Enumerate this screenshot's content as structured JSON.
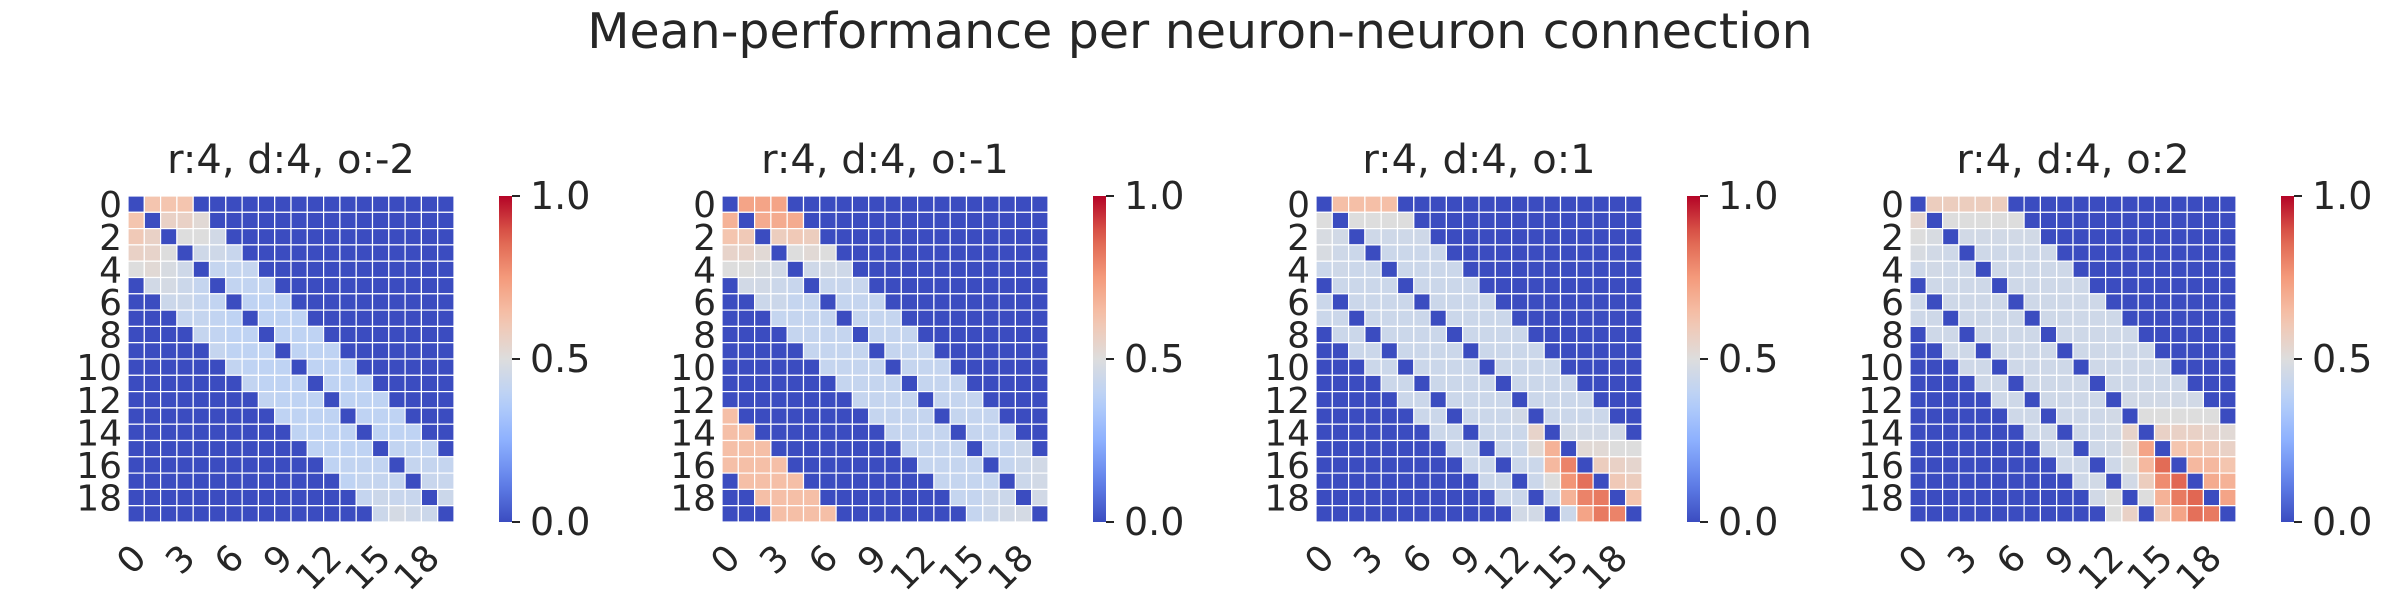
{
  "suptitle": "Mean-performance per neuron-neuron connection",
  "chart_data": [
    {
      "type": "heatmap",
      "title": "r:4, d:4, o:-2",
      "size": 20,
      "colormap": "coolwarm",
      "vmin": 0.0,
      "vmax": 1.0,
      "colorbar_ticks": [
        "0.0",
        "0.5",
        "1.0"
      ],
      "y_tick_labels": [
        "0",
        "2",
        "4",
        "6",
        "8",
        "10",
        "12",
        "14",
        "16",
        "18"
      ],
      "x_tick_labels": [
        "0",
        "3",
        "6",
        "9",
        "12",
        "15",
        "18"
      ],
      "zero_value": 0.0,
      "diagonal_value": 0.0,
      "bands": [
        {
          "offset": -5,
          "values": [
            0,
            0,
            0,
            0,
            0,
            0,
            0,
            0,
            0,
            0,
            0,
            0,
            0,
            0,
            0
          ]
        },
        {
          "offset": -4,
          "values": [
            0.5,
            0.46,
            0.44,
            0.42,
            0.42,
            0.42,
            0.41,
            0.41,
            0.41,
            0.4,
            0.4,
            0.4,
            0.4,
            0.4,
            0.42,
            0.44
          ]
        },
        {
          "offset": -3,
          "values": [
            0.56,
            0.52,
            0.47,
            0.44,
            0.42,
            0.41,
            0.4,
            0.4,
            0.4,
            0.4,
            0.4,
            0.4,
            0.4,
            0.41,
            0.42,
            0.44,
            0.47
          ]
        },
        {
          "offset": -2,
          "values": [
            0.6,
            0.55,
            0.48,
            0.44,
            0.42,
            0.41,
            0.4,
            0.4,
            0.4,
            0.4,
            0.4,
            0.4,
            0.4,
            0.4,
            0.41,
            0.42,
            0.43,
            0.45
          ]
        },
        {
          "offset": -1,
          "values": [
            0.62,
            0.56,
            0.5,
            0.45,
            0.42,
            0.41,
            0.4,
            0.4,
            0.4,
            0.4,
            0.4,
            0.4,
            0.4,
            0.4,
            0.4,
            0.41,
            0.42,
            0.43,
            0.44
          ]
        },
        {
          "offset": 1,
          "values": [
            0.62,
            0.56,
            0.5,
            0.45,
            0.42,
            0.41,
            0.4,
            0.4,
            0.4,
            0.4,
            0.4,
            0.4,
            0.4,
            0.4,
            0.4,
            0.41,
            0.42,
            0.43,
            0.44
          ]
        },
        {
          "offset": 2,
          "values": [
            0.62,
            0.56,
            0.5,
            0.45,
            0.42,
            0.41,
            0.4,
            0.4,
            0.4,
            0.4,
            0.4,
            0.4,
            0.4,
            0.4,
            0.4,
            0.41,
            0.42,
            0.43
          ]
        },
        {
          "offset": 3,
          "values": [
            0.62,
            0.52,
            0.46,
            0.43,
            0.42,
            0.41,
            0.4,
            0.4,
            0.4,
            0.4,
            0.4,
            0.4,
            0.4,
            0.4,
            0.4,
            0.41,
            0.42
          ]
        },
        {
          "offset": 4,
          "values": [
            0,
            0,
            0,
            0,
            0,
            0,
            0,
            0,
            0,
            0,
            0,
            0,
            0,
            0,
            0,
            0
          ]
        }
      ]
    },
    {
      "type": "heatmap",
      "title": "r:4, d:4, o:-1",
      "size": 20,
      "colormap": "coolwarm",
      "vmin": 0.0,
      "vmax": 1.0,
      "colorbar_ticks": [
        "0.0",
        "0.5",
        "1.0"
      ],
      "y_tick_labels": [
        "0",
        "2",
        "4",
        "6",
        "8",
        "10",
        "12",
        "14",
        "16",
        "18"
      ],
      "x_tick_labels": [
        "0",
        "3",
        "6",
        "9",
        "12",
        "15",
        "18"
      ],
      "zero_value": 0.0,
      "diagonal_value": 0.0,
      "bands": [
        {
          "offset": -4,
          "values": [
            0.5,
            0.46,
            0.44,
            0.42,
            0.42,
            0.42,
            0.42,
            0.42,
            0.42,
            0.42,
            0.42,
            0.42,
            0.42,
            0.42,
            0.42,
            0.42
          ]
        },
        {
          "offset": -3,
          "values": [
            0.55,
            0.5,
            0.46,
            0.44,
            0.42,
            0.42,
            0.42,
            0.42,
            0.42,
            0.42,
            0.42,
            0.42,
            0.42,
            0.42,
            0.42,
            0.42,
            0.44
          ]
        },
        {
          "offset": -2,
          "values": [
            0.62,
            0.55,
            0.48,
            0.44,
            0.42,
            0.42,
            0.42,
            0.42,
            0.42,
            0.42,
            0.42,
            0.42,
            0.42,
            0.42,
            0.42,
            0.42,
            0.44,
            0.46
          ]
        },
        {
          "offset": -1,
          "values": [
            0.68,
            0.6,
            0.52,
            0.46,
            0.43,
            0.42,
            0.42,
            0.42,
            0.42,
            0.42,
            0.42,
            0.42,
            0.42,
            0.42,
            0.42,
            0.42,
            0.42,
            0.44,
            0.47
          ]
        },
        {
          "offset": 1,
          "values": [
            0.72,
            0.7,
            0.58,
            0.5,
            0.45,
            0.43,
            0.42,
            0.42,
            0.42,
            0.42,
            0.42,
            0.42,
            0.42,
            0.42,
            0.42,
            0.42,
            0.42,
            0.44,
            0.46
          ]
        },
        {
          "offset": 2,
          "values": [
            0.72,
            0.7,
            0.6,
            0.52,
            0.46,
            0.43,
            0.42,
            0.42,
            0.42,
            0.42,
            0.42,
            0.42,
            0.42,
            0.42,
            0.42,
            0.42,
            0.44,
            0.46
          ]
        },
        {
          "offset": 3,
          "values": [
            0.72,
            0.7,
            0.58,
            0.5,
            0.45,
            0.43,
            0.42,
            0.42,
            0.42,
            0.42,
            0.42,
            0.42,
            0.42,
            0.42,
            0.42,
            0.44,
            0.46
          ]
        },
        {
          "offset": -16,
          "values": [
            0.64,
            0.64,
            0.64,
            0.64
          ]
        },
        {
          "offset": -15,
          "values": [
            0.64,
            0.64,
            0.64,
            0.64,
            0.64
          ]
        },
        {
          "offset": -14,
          "values": [
            0.64,
            0.64,
            0.64,
            0.64,
            0.64,
            0.64
          ]
        },
        {
          "offset": -13,
          "values": [
            0.64,
            0.64,
            0.64,
            0.64,
            0.64,
            0.64,
            0.64
          ]
        }
      ]
    },
    {
      "type": "heatmap",
      "title": "r:4, d:4, o:1",
      "size": 20,
      "colormap": "coolwarm",
      "vmin": 0.0,
      "vmax": 1.0,
      "colorbar_ticks": [
        "0.0",
        "0.5",
        "1.0"
      ],
      "y_tick_labels": [
        "0",
        "2",
        "4",
        "6",
        "8",
        "10",
        "12",
        "14",
        "16",
        "18"
      ],
      "x_tick_labels": [
        "0",
        "3",
        "6",
        "9",
        "12",
        "15",
        "18"
      ],
      "zero_value": 0.0,
      "diagonal_value": 0.0,
      "bands": [
        {
          "offset": -4,
          "values": [
            0.44,
            0.44,
            0.44,
            0.44,
            0.44,
            0.44,
            0.44,
            0.44,
            0.44,
            0.44,
            0.44,
            0.44,
            0.44,
            0.44,
            0.44,
            0.44
          ]
        },
        {
          "offset": -3,
          "values": [
            0.48,
            0.45,
            0.44,
            0.44,
            0.44,
            0.44,
            0.44,
            0.44,
            0.44,
            0.44,
            0.44,
            0.44,
            0.44,
            0.44,
            0.5,
            0.68,
            0.72
          ]
        },
        {
          "offset": -2,
          "values": [
            0.48,
            0.45,
            0.44,
            0.44,
            0.44,
            0.44,
            0.44,
            0.44,
            0.44,
            0.44,
            0.44,
            0.44,
            0.44,
            0.52,
            0.66,
            0.76,
            0.8,
            0.82
          ]
        },
        {
          "offset": -1,
          "values": [
            0.5,
            0.46,
            0.44,
            0.44,
            0.44,
            0.44,
            0.44,
            0.44,
            0.44,
            0.44,
            0.44,
            0.44,
            0.46,
            0.55,
            0.68,
            0.8,
            0.84,
            0.82,
            0.8
          ]
        },
        {
          "offset": 1,
          "values": [
            0.64,
            0.5,
            0.45,
            0.44,
            0.44,
            0.44,
            0.44,
            0.44,
            0.44,
            0.44,
            0.44,
            0.44,
            0.44,
            0.44,
            0.46,
            0.52,
            0.58,
            0.6,
            0.62
          ]
        },
        {
          "offset": 2,
          "values": [
            0.64,
            0.5,
            0.45,
            0.44,
            0.44,
            0.44,
            0.44,
            0.44,
            0.44,
            0.44,
            0.44,
            0.44,
            0.44,
            0.44,
            0.46,
            0.52,
            0.56,
            0.58
          ]
        },
        {
          "offset": 3,
          "values": [
            0.64,
            0.5,
            0.45,
            0.44,
            0.44,
            0.44,
            0.44,
            0.44,
            0.44,
            0.44,
            0.44,
            0.44,
            0.44,
            0.44,
            0.46,
            0.5,
            0.54
          ]
        },
        {
          "offset": 4,
          "values": [
            0.64,
            0.5,
            0.45,
            0.44,
            0.44,
            0.44,
            0.44,
            0.44,
            0.44,
            0.44,
            0.44,
            0.44,
            0.44,
            0.44,
            0.46,
            0.5
          ]
        },
        {
          "offset": -5,
          "values": [
            0,
            0,
            0,
            0,
            0,
            0,
            0,
            0,
            0,
            0,
            0,
            0,
            0,
            0,
            0
          ]
        },
        {
          "offset": -6,
          "values": [
            0.44,
            0.44,
            0.44,
            0.44,
            0.44,
            0.44,
            0.44,
            0.44,
            0.44,
            0.44,
            0.44,
            0.44,
            0.44,
            0.46
          ]
        },
        {
          "offset": -7,
          "values": [
            0.44,
            0.44,
            0.44,
            0.44,
            0.44,
            0.44,
            0.44,
            0.44,
            0.44,
            0.44,
            0.44,
            0.44,
            0.46
          ]
        }
      ]
    },
    {
      "type": "heatmap",
      "title": "r:4, d:4, o:2",
      "size": 20,
      "colormap": "coolwarm",
      "vmin": 0.0,
      "vmax": 1.0,
      "colorbar_ticks": [
        "0.0",
        "0.5",
        "1.0"
      ],
      "y_tick_labels": [
        "0",
        "2",
        "4",
        "6",
        "8",
        "10",
        "12",
        "14",
        "16",
        "18"
      ],
      "x_tick_labels": [
        "0",
        "3",
        "6",
        "9",
        "12",
        "15",
        "18"
      ],
      "zero_value": 0.0,
      "diagonal_value": 0.0,
      "bands": [
        {
          "offset": -4,
          "values": [
            0.45,
            0.45,
            0.45,
            0.45,
            0.45,
            0.45,
            0.45,
            0.45,
            0.45,
            0.45,
            0.45,
            0.45,
            0.45,
            0.46,
            0.5,
            0.6
          ]
        },
        {
          "offset": -3,
          "values": [
            0.48,
            0.46,
            0.45,
            0.45,
            0.45,
            0.45,
            0.45,
            0.45,
            0.45,
            0.45,
            0.45,
            0.45,
            0.46,
            0.5,
            0.58,
            0.68,
            0.72
          ]
        },
        {
          "offset": -2,
          "values": [
            0.5,
            0.46,
            0.45,
            0.45,
            0.45,
            0.45,
            0.45,
            0.45,
            0.45,
            0.45,
            0.45,
            0.45,
            0.46,
            0.52,
            0.66,
            0.78,
            0.82,
            0.84
          ]
        },
        {
          "offset": -1,
          "values": [
            0.54,
            0.48,
            0.45,
            0.45,
            0.45,
            0.45,
            0.45,
            0.45,
            0.45,
            0.45,
            0.45,
            0.45,
            0.46,
            0.55,
            0.72,
            0.85,
            0.86,
            0.86,
            0.82
          ]
        },
        {
          "offset": 1,
          "values": [
            0.58,
            0.5,
            0.46,
            0.45,
            0.45,
            0.45,
            0.45,
            0.45,
            0.45,
            0.45,
            0.45,
            0.45,
            0.46,
            0.5,
            0.56,
            0.62,
            0.66,
            0.7,
            0.72
          ]
        },
        {
          "offset": 2,
          "values": [
            0.58,
            0.5,
            0.46,
            0.45,
            0.45,
            0.45,
            0.45,
            0.45,
            0.45,
            0.45,
            0.45,
            0.45,
            0.46,
            0.5,
            0.56,
            0.62,
            0.66,
            0.68
          ]
        },
        {
          "offset": 3,
          "values": [
            0.58,
            0.5,
            0.46,
            0.45,
            0.45,
            0.45,
            0.45,
            0.45,
            0.45,
            0.45,
            0.45,
            0.45,
            0.46,
            0.5,
            0.56,
            0.6,
            0.62
          ]
        },
        {
          "offset": 4,
          "values": [
            0.58,
            0.5,
            0.46,
            0.45,
            0.45,
            0.45,
            0.45,
            0.45,
            0.45,
            0.45,
            0.45,
            0.45,
            0.46,
            0.5,
            0.54,
            0.56
          ]
        },
        {
          "offset": 5,
          "values": [
            0.58,
            0.5,
            0.46,
            0.45,
            0.45,
            0.45,
            0.45,
            0.45,
            0.45,
            0.45,
            0.45,
            0.45,
            0.46,
            0.5,
            0.52
          ]
        },
        {
          "offset": -5,
          "values": [
            0,
            0,
            0,
            0,
            0,
            0,
            0,
            0,
            0,
            0,
            0,
            0,
            0,
            0,
            0
          ]
        },
        {
          "offset": -6,
          "values": [
            0.45,
            0.45,
            0.45,
            0.45,
            0.45,
            0.45,
            0.45,
            0.45,
            0.45,
            0.45,
            0.45,
            0.46,
            0.5,
            0.56
          ]
        },
        {
          "offset": -7,
          "values": [
            0.45,
            0.45,
            0.45,
            0.45,
            0.45,
            0.45,
            0.45,
            0.45,
            0.45,
            0.45,
            0.45,
            0.46,
            0.5
          ]
        }
      ]
    }
  ]
}
